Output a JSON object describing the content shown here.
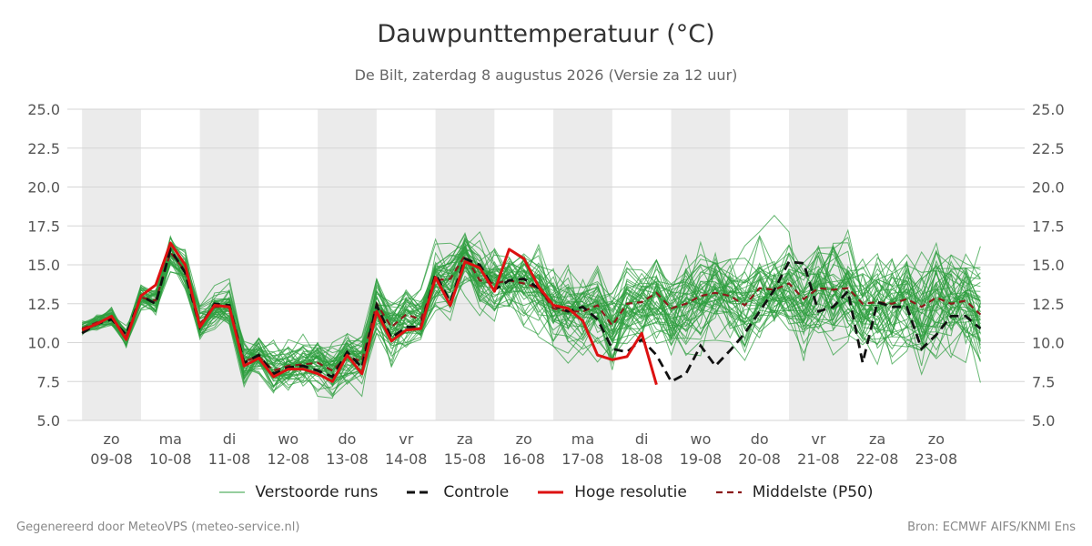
{
  "header": {
    "title": "Dauwpunttemperatuur (°C)",
    "subtitle": "De Bilt, zaterdag  8 augustus 2026 (Versie za 12 uur)"
  },
  "footer": {
    "left": "Gegenereerd door MeteoVPS (meteo-service.nl)",
    "right": "Bron: ECMWF AIFS/KNMI Ens"
  },
  "colors": {
    "ensemble": "#2e9e3e",
    "control": "#111111",
    "high_res": "#dd1111",
    "median": "#8b1a1a",
    "weekend_band": "#ebebeb",
    "grid": "#d6d6d6"
  },
  "legend": {
    "ensemble": "Verstoorde runs",
    "control": "Controle",
    "high_res": "Hoge resolutie",
    "median": "Middelste (P50)"
  },
  "chart_data": {
    "type": "line",
    "ylim": [
      5,
      25
    ],
    "yticks": [
      "5.0",
      "7.5",
      "10.0",
      "12.5",
      "15.0",
      "17.5",
      "20.0",
      "22.5",
      "25.0"
    ],
    "xlim_days": [
      -0.75,
      15.5
    ],
    "day_ticks": [
      {
        "day": "zo",
        "date": "09-08"
      },
      {
        "day": "ma",
        "date": "10-08"
      },
      {
        "day": "di",
        "date": "11-08"
      },
      {
        "day": "wo",
        "date": "12-08"
      },
      {
        "day": "do",
        "date": "13-08"
      },
      {
        "day": "vr",
        "date": "14-08"
      },
      {
        "day": "za",
        "date": "15-08"
      },
      {
        "day": "zo",
        "date": "16-08"
      },
      {
        "day": "ma",
        "date": "17-08"
      },
      {
        "day": "di",
        "date": "18-08"
      },
      {
        "day": "wo",
        "date": "19-08"
      },
      {
        "day": "do",
        "date": "20-08"
      },
      {
        "day": "vr",
        "date": "21-08"
      },
      {
        "day": "za",
        "date": "22-08"
      },
      {
        "day": "zo",
        "date": "23-08"
      }
    ],
    "shaded_days": [
      0,
      2,
      4,
      6,
      8,
      10,
      12,
      14
    ],
    "grid": true,
    "legend_position": "bottom",
    "step_hours": 6,
    "ensemble_members": 50,
    "series": [
      {
        "name": "Hoge resolutie",
        "values": [
          10.8,
          11.2,
          11.7,
          10.2,
          13.0,
          13.7,
          16.4,
          15.0,
          11.0,
          12.4,
          12.3,
          8.5,
          9.0,
          7.8,
          8.3,
          8.3,
          8.0,
          7.5,
          9.2,
          8.0,
          12.0,
          10.1,
          10.8,
          10.9,
          14.2,
          12.4,
          15.2,
          14.8,
          13.3,
          16.0,
          15.4,
          13.6,
          12.4,
          12.2,
          11.4,
          9.2,
          8.9,
          9.1,
          10.6,
          7.3
        ]
      },
      {
        "name": "Controle",
        "values": [
          10.6,
          11.2,
          11.5,
          10.5,
          13.0,
          12.5,
          16.0,
          14.5,
          11.0,
          12.5,
          12.4,
          8.7,
          9.2,
          8.0,
          8.4,
          8.5,
          8.2,
          7.8,
          9.4,
          8.4,
          12.4,
          10.3,
          11.0,
          11.0,
          14.4,
          12.6,
          15.4,
          15.0,
          13.4,
          14.0,
          14.1,
          13.5,
          12.4,
          12.0,
          12.3,
          11.5,
          9.6,
          9.4,
          10.2,
          9.2,
          7.5,
          8.0,
          9.8,
          8.5,
          9.5,
          10.6,
          12.0,
          13.4,
          15.2,
          15.1,
          12.0,
          12.3,
          13.3,
          8.7,
          12.6,
          12.3,
          12.3,
          9.6,
          10.5,
          11.7,
          11.7,
          10.9
        ]
      },
      {
        "name": "Middelste (P50)",
        "values": [
          10.9,
          11.3,
          11.6,
          10.4,
          12.9,
          12.7,
          15.8,
          14.6,
          11.2,
          12.3,
          12.3,
          8.8,
          9.1,
          8.2,
          8.5,
          8.6,
          8.7,
          8.2,
          9.1,
          8.8,
          12.5,
          11.0,
          11.8,
          11.5,
          14.0,
          14.1,
          15.6,
          14.0,
          13.8,
          14.0,
          13.8,
          13.5,
          12.2,
          12.0,
          12.0,
          12.4,
          11.1,
          12.5,
          12.6,
          13.2,
          12.2,
          12.5,
          13.0,
          13.2,
          13.0,
          12.4,
          13.5,
          13.4,
          13.8,
          12.8,
          13.5,
          13.4,
          13.5,
          12.5,
          12.6,
          12.5,
          12.8,
          12.3,
          12.9,
          12.5,
          12.7,
          11.8
        ]
      }
    ]
  }
}
